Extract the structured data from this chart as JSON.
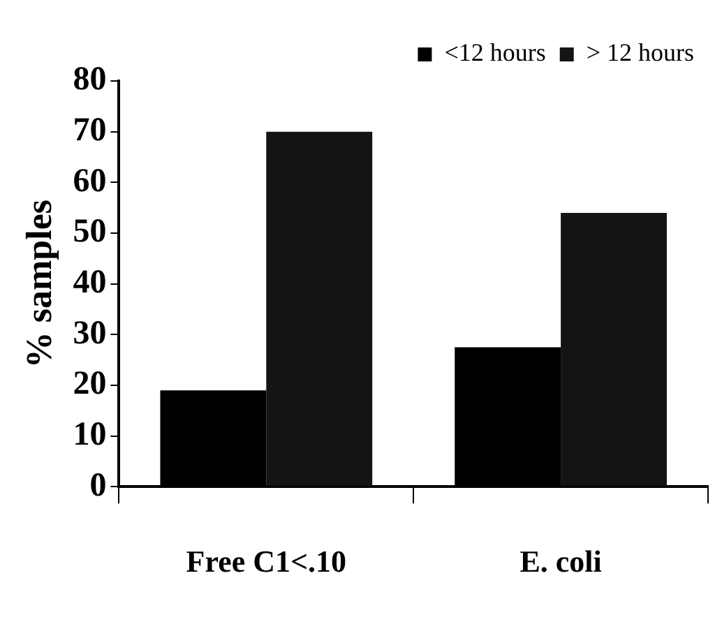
{
  "chart_data": {
    "type": "bar",
    "ylabel": "% samples",
    "categories": [
      "Free C1<.10",
      "E. coli"
    ],
    "series": [
      {
        "name": "<12 hours",
        "color": "#000000",
        "values": [
          19,
          27.5
        ]
      },
      {
        "name": "> 12 hours",
        "color": "#141414",
        "values": [
          70,
          54
        ]
      }
    ],
    "ylim": [
      0,
      80
    ],
    "yticks": [
      0,
      10,
      20,
      30,
      40,
      50,
      60,
      70,
      80
    ],
    "grid": false,
    "legend": "top right"
  }
}
